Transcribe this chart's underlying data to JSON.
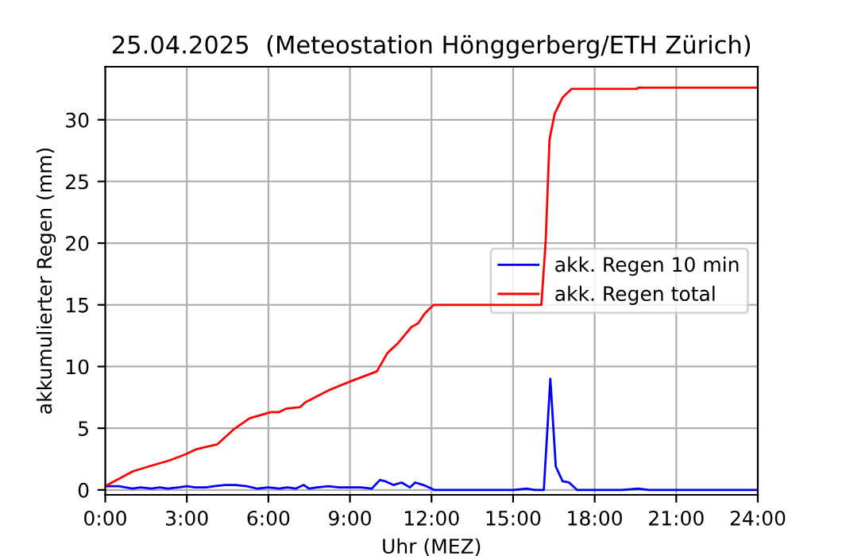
{
  "chart_data": {
    "type": "line",
    "title": "25.04.2025  (Meteostation Hönggerberg/ETH Zürich)",
    "xlabel": "Uhr (MEZ)",
    "ylabel": "akkumulierter Regen (mm)",
    "xlim": [
      0,
      24
    ],
    "xticks": [
      {
        "value": 0,
        "label": "0:00"
      },
      {
        "value": 3,
        "label": "3:00"
      },
      {
        "value": 6,
        "label": "6:00"
      },
      {
        "value": 9,
        "label": "9:00"
      },
      {
        "value": 12,
        "label": "12:00"
      },
      {
        "value": 15,
        "label": "15:00"
      },
      {
        "value": 18,
        "label": "18:00"
      },
      {
        "value": 21,
        "label": "21:00"
      },
      {
        "value": 24,
        "label": "24:00"
      }
    ],
    "ylim": [
      -0.4,
      34.3
    ],
    "yticks": [
      0,
      5,
      10,
      15,
      20,
      25,
      30
    ],
    "grid": true,
    "legend": "right",
    "line_style": "solid",
    "marker": "none",
    "series": [
      {
        "name": "akk. Regen 10 min",
        "color": "#0000ff",
        "x": [
          0,
          0.5,
          1,
          1.3,
          1.7,
          2,
          2.3,
          2.7,
          3,
          3.3,
          3.7,
          4,
          4.4,
          4.8,
          5.2,
          5.6,
          6,
          6.4,
          6.7,
          7,
          7.3,
          7.5,
          7.8,
          8.2,
          8.6,
          9,
          9.4,
          9.8,
          10.1,
          10.3,
          10.6,
          10.9,
          11.2,
          11.4,
          11.7,
          12.1,
          13,
          14,
          15,
          15.5,
          15.8,
          16.13,
          16.37,
          16.57,
          16.82,
          17.06,
          17.35,
          18,
          19,
          19.6,
          20,
          21,
          22,
          23,
          24
        ],
        "values": [
          0.3,
          0.3,
          0.1,
          0.2,
          0.1,
          0.2,
          0.1,
          0.2,
          0.3,
          0.2,
          0.2,
          0.3,
          0.4,
          0.4,
          0.3,
          0.1,
          0.2,
          0.1,
          0.2,
          0.1,
          0.4,
          0.1,
          0.2,
          0.3,
          0.2,
          0.2,
          0.2,
          0.1,
          0.8,
          0.7,
          0.4,
          0.6,
          0.2,
          0.6,
          0.4,
          0,
          0,
          0,
          0,
          0.1,
          0,
          0,
          9.0,
          1.9,
          0.7,
          0.6,
          0,
          0,
          0,
          0.1,
          0,
          0,
          0,
          0,
          0
        ]
      },
      {
        "name": "akk. Regen total",
        "color": "#ff0000",
        "x": [
          0,
          1.01,
          1.6,
          2.38,
          2.97,
          3.35,
          4.13,
          4.72,
          5.31,
          6.09,
          6.38,
          6.67,
          7.16,
          7.36,
          8.24,
          9.02,
          9.99,
          10.38,
          10.77,
          11.26,
          11.51,
          11.75,
          12.08,
          16.04,
          16.2,
          16.34,
          16.53,
          16.82,
          17.15,
          19.56,
          19.6,
          24
        ],
        "values": [
          0.3,
          1.5,
          1.9,
          2.4,
          2.9,
          3.3,
          3.7,
          4.9,
          5.8,
          6.3,
          6.3,
          6.6,
          6.7,
          7.1,
          8.1,
          8.8,
          9.6,
          11.1,
          11.9,
          13.2,
          13.5,
          14.3,
          15.0,
          15.0,
          20.2,
          28.4,
          30.5,
          31.8,
          32.5,
          32.5,
          32.6,
          32.6
        ]
      }
    ]
  }
}
